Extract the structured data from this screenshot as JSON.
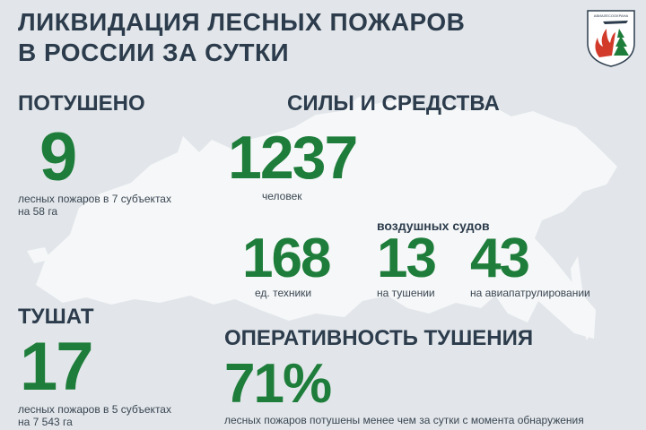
{
  "title_line1": "ЛИКВИДАЦИЯ ЛЕСНЫХ ПОЖАРОВ",
  "title_line2": "В РОССИИ ЗА СУТКИ",
  "logo_text": "АВИАЛЕСООХРАНА",
  "extinguished": {
    "heading": "ПОТУШЕНО",
    "value": "9",
    "caption_line1": "лесных пожаров в 7 субъектах",
    "caption_line2": "на 58 га"
  },
  "forces": {
    "heading": "СИЛЫ И СРЕДСТВА",
    "people_value": "1237",
    "people_caption": "человек",
    "aircraft_heading": "воздушных судов",
    "machinery_value": "168",
    "machinery_caption": "ед. техники",
    "aircraft_extinguishing_value": "13",
    "aircraft_extinguishing_caption": "на тушении",
    "aircraft_patrol_value": "43",
    "aircraft_patrol_caption": "на авиапатрулировании"
  },
  "extinguishing": {
    "heading": "ТУШАТ",
    "value": "17",
    "caption_line1": "лесных пожаров в 5 субъектах",
    "caption_line2": "на 7 543 га"
  },
  "efficiency": {
    "heading": "ОПЕРАТИВНОСТЬ ТУШЕНИЯ",
    "value": "71%",
    "caption": "лесных пожаров потушены менее чем за сутки с момента обнаружения"
  },
  "colors": {
    "background": "#e2e6ea",
    "map": "#f5f7f8",
    "heading": "#2c3c4c",
    "numbers": "#1e7d3a",
    "logo_red": "#d23a2a"
  }
}
